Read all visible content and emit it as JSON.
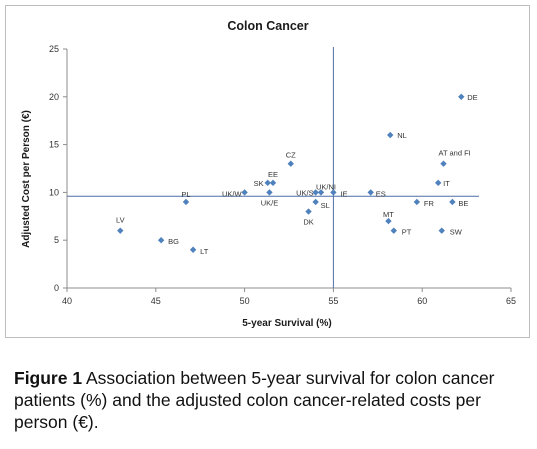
{
  "chart_data": {
    "type": "scatter",
    "title": "Colon Cancer",
    "xlabel": "5-year Survival (%)",
    "ylabel": "Adjusted Cost per Person (€)",
    "xlim": [
      40,
      65
    ],
    "ylim": [
      0,
      25
    ],
    "xticks": [
      40,
      45,
      50,
      55,
      60,
      65
    ],
    "yticks": [
      0,
      5,
      10,
      15,
      20,
      25
    ],
    "reference_lines": {
      "x": 55,
      "y": 9.6
    },
    "marker_color": "#4f81bd",
    "points": [
      {
        "label": "LV",
        "x": 43.0,
        "y": 6.0
      },
      {
        "label": "BG",
        "x": 45.3,
        "y": 5.0
      },
      {
        "label": "LT",
        "x": 47.1,
        "y": 4.0
      },
      {
        "label": "PL",
        "x": 46.7,
        "y": 9.0
      },
      {
        "label": "UK/W",
        "x": 50.0,
        "y": 10.0
      },
      {
        "label": "SK",
        "x": 51.3,
        "y": 11.0
      },
      {
        "label": "EE",
        "x": 51.6,
        "y": 11.0
      },
      {
        "label": "UK/E",
        "x": 51.4,
        "y": 10.0
      },
      {
        "label": "CZ",
        "x": 52.6,
        "y": 13.0
      },
      {
        "label": "DK",
        "x": 53.6,
        "y": 8.0
      },
      {
        "label": "UK/S",
        "x": 54.0,
        "y": 10.0
      },
      {
        "label": "SL",
        "x": 54.0,
        "y": 9.0
      },
      {
        "label": "UK/NI",
        "x": 54.3,
        "y": 10.0
      },
      {
        "label": "IE",
        "x": 55.0,
        "y": 10.0
      },
      {
        "label": "ES",
        "x": 57.1,
        "y": 10.0
      },
      {
        "label": "NL",
        "x": 58.2,
        "y": 16.0
      },
      {
        "label": "MT",
        "x": 58.1,
        "y": 7.0
      },
      {
        "label": "PT",
        "x": 58.4,
        "y": 6.0
      },
      {
        "label": "FR",
        "x": 59.7,
        "y": 9.0
      },
      {
        "label": "IT",
        "x": 60.9,
        "y": 11.0
      },
      {
        "label": "AT and FI",
        "x": 61.2,
        "y": 13.0
      },
      {
        "label": "SW",
        "x": 61.1,
        "y": 6.0
      },
      {
        "label": "BE",
        "x": 61.7,
        "y": 9.0
      },
      {
        "label": "DE",
        "x": 62.2,
        "y": 20.0
      }
    ]
  },
  "caption": {
    "label": "Figure 1",
    "text": " Association between 5-year survival for colon cancer patients (%) and the adjusted colon cancer-related costs per person (€)."
  }
}
